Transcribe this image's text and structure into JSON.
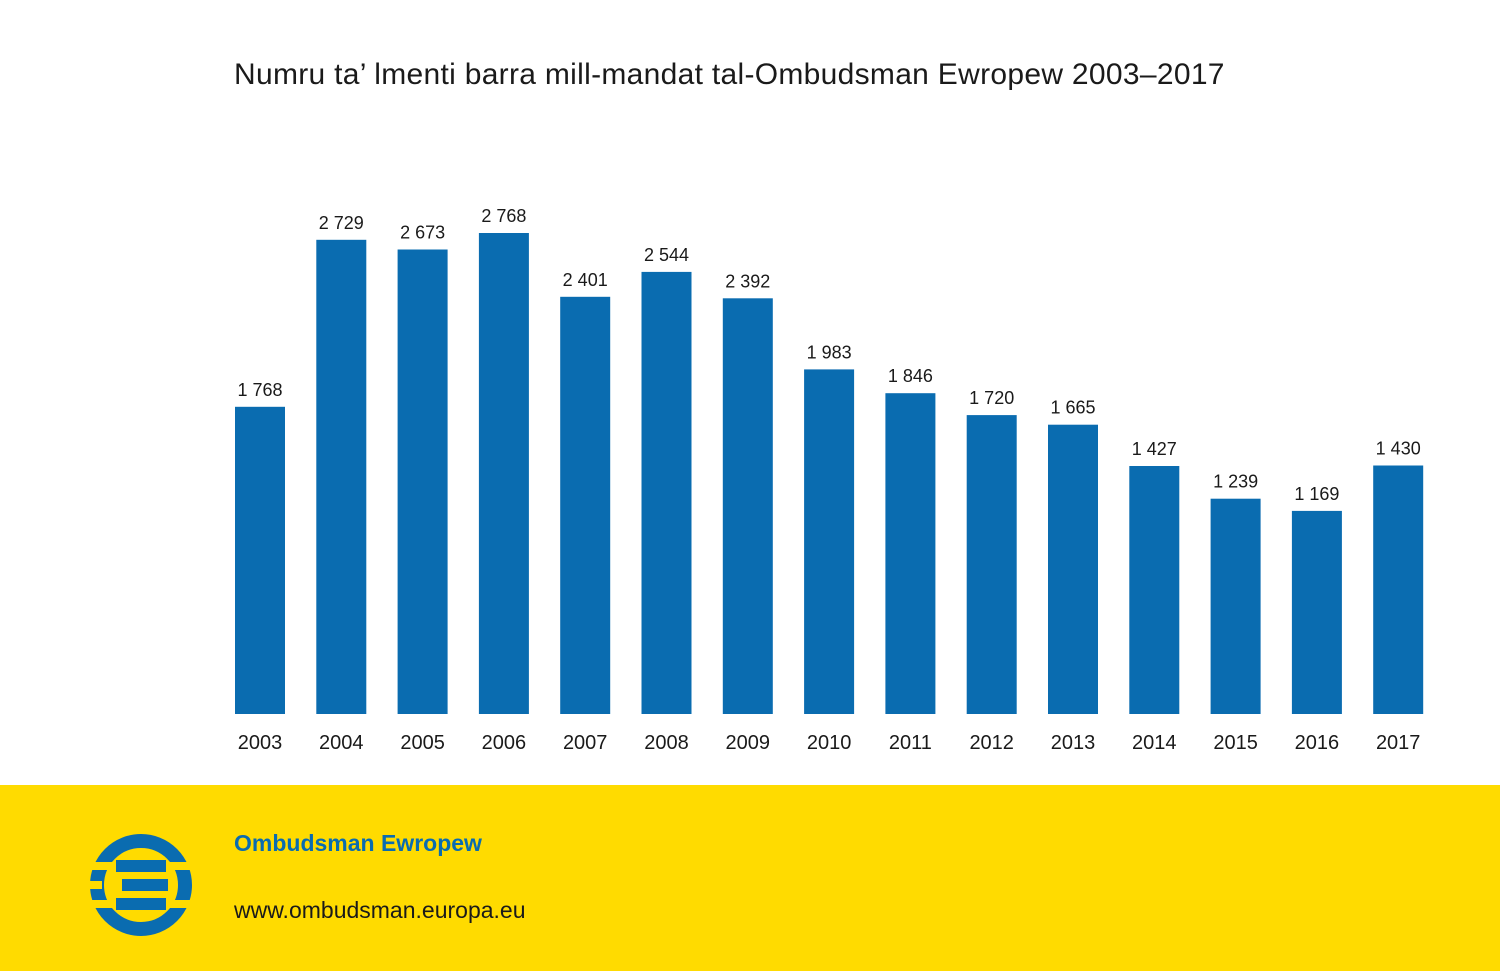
{
  "chart_data": {
    "type": "bar",
    "title": "Numru ta’ lmenti barra mill-mandat tal-Ombudsman Ewropew 2003–2017",
    "xlabel": "",
    "ylabel": "",
    "categories": [
      "2003",
      "2004",
      "2005",
      "2006",
      "2007",
      "2008",
      "2009",
      "2010",
      "2011",
      "2012",
      "2013",
      "2014",
      "2015",
      "2016",
      "2017"
    ],
    "values": [
      1768,
      2729,
      2673,
      2768,
      2401,
      2544,
      2392,
      1983,
      1846,
      1720,
      1665,
      1427,
      1239,
      1169,
      1430
    ],
    "value_labels": [
      "1 768",
      "2 729",
      "2 673",
      "2 768",
      "2 401",
      "2 544",
      "2 392",
      "1 983",
      "1 846",
      "1 720",
      "1 665",
      "1 427",
      "1 239",
      "1 169",
      "1 430"
    ],
    "ylim": [
      0,
      2768
    ],
    "grid": false,
    "legend": "none",
    "bar_color": "#0a6cb0"
  },
  "footer": {
    "org_name": "Ombudsman Ewropew",
    "url": "www.ombudsman.europa.eu",
    "background_color": "#ffdb00",
    "brand_color": "#0a6cb0",
    "logo_icon": "european-ombudsman-logo-icon"
  }
}
